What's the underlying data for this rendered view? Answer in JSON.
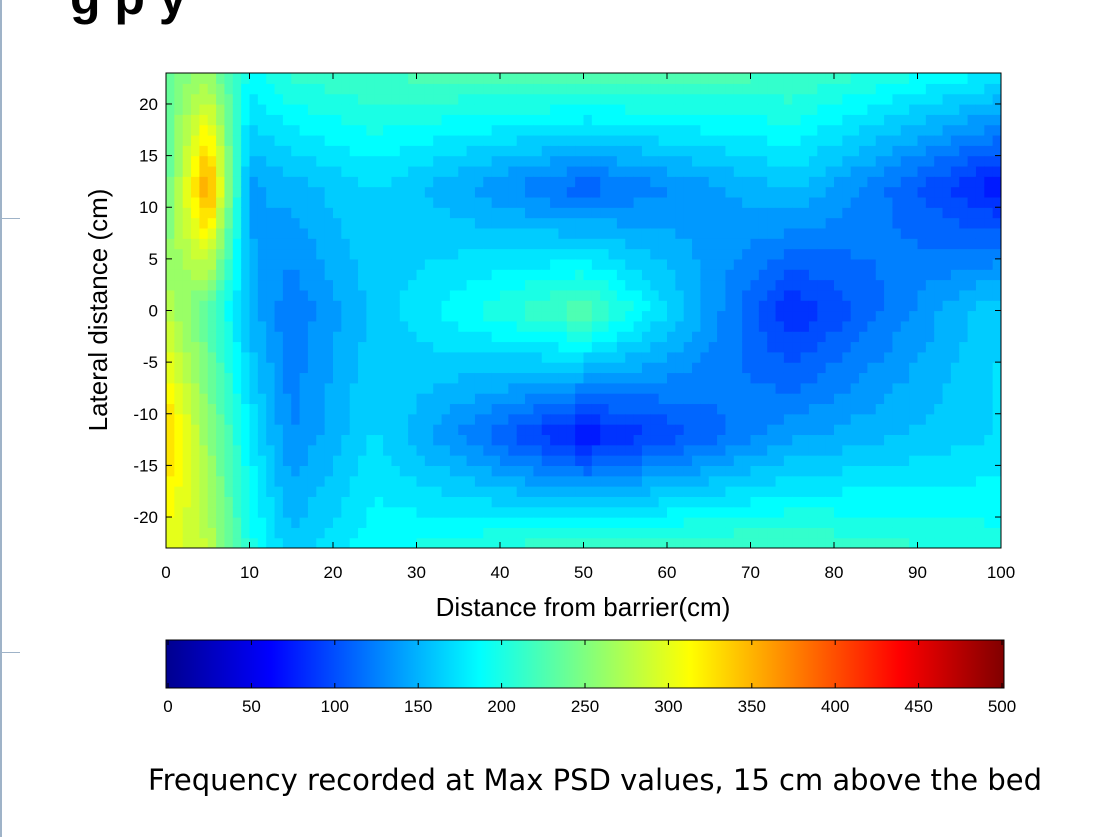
{
  "page": {
    "title_fragment": "g              p     y",
    "caption": "Frequency recorded at Max PSD values, 15 cm above the bed"
  },
  "chart_data": {
    "type": "heatmap",
    "title": "",
    "xlabel": "Distance from barrier(cm)",
    "ylabel": "Lateral distance (cm)",
    "xlim": [
      0,
      100
    ],
    "ylim": [
      -23,
      23
    ],
    "x": [
      0,
      5,
      10,
      15,
      25,
      50,
      75,
      100
    ],
    "y": [
      -23,
      -12,
      0,
      12,
      23
    ],
    "z": [
      [
        300,
        280,
        200,
        160,
        190,
        220,
        220,
        200
      ],
      [
        340,
        260,
        180,
        130,
        170,
        70,
        140,
        170
      ],
      [
        280,
        230,
        150,
        120,
        160,
        230,
        80,
        170
      ],
      [
        230,
        370,
        140,
        150,
        170,
        110,
        160,
        70
      ],
      [
        240,
        260,
        190,
        210,
        220,
        230,
        220,
        180
      ]
    ],
    "xticks": [
      "0",
      "10",
      "20",
      "30",
      "40",
      "50",
      "60",
      "70",
      "80",
      "90",
      "100"
    ],
    "yticks": [
      "20",
      "15",
      "10",
      "5",
      "0",
      "-5",
      "-10",
      "-15",
      "-20"
    ],
    "colorbar": {
      "min": 0,
      "max": 500,
      "ticks": [
        "0",
        "50",
        "100",
        "150",
        "200",
        "250",
        "300",
        "350",
        "400",
        "450",
        "500"
      ],
      "colormap": "jet"
    },
    "grid": false
  }
}
